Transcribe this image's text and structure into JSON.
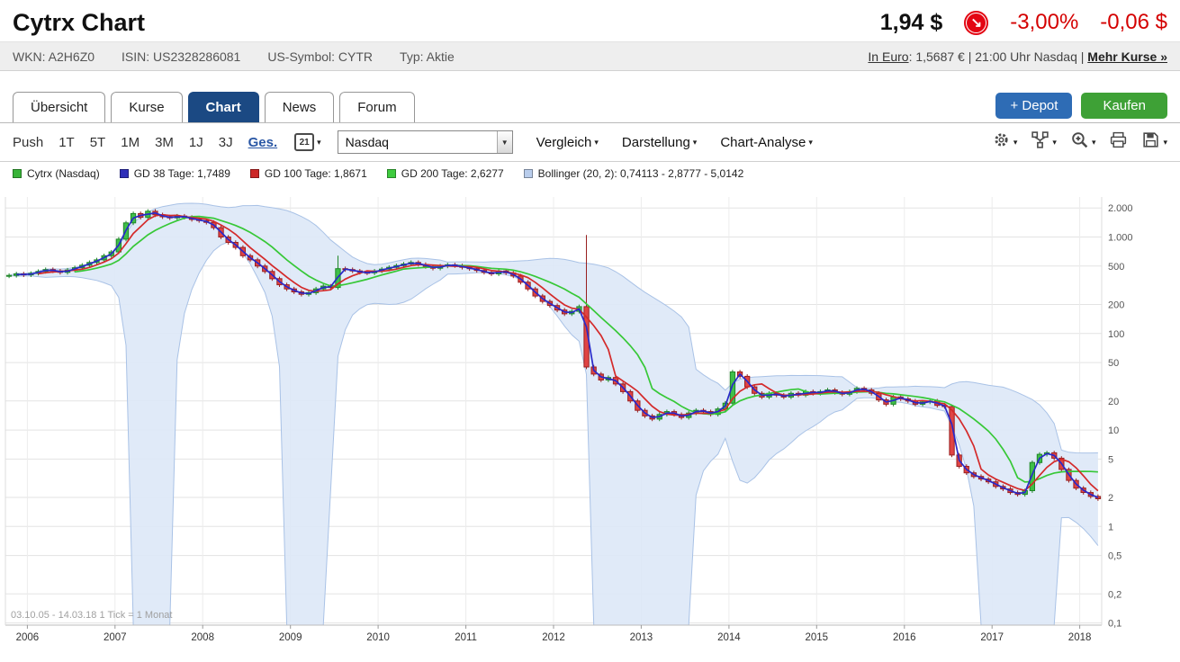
{
  "icons": {
    "caret_down": "▾",
    "select_arrow": "▼",
    "arrow_badge": "↘"
  },
  "header": {
    "title": "Cytrx Chart",
    "price": "1,94 $",
    "change_percent": "-3,00%",
    "change_abs": "-0,06 $",
    "negative_color": "#d40000"
  },
  "infobar": {
    "items": [
      "WKN: A2H6Z0",
      "ISIN: US2328286081",
      "US-Symbol: CYTR",
      "Typ: Aktie"
    ],
    "euro_link": "In Euro",
    "euro_text": ": 1,5687 € | 21:00 Uhr Nasdaq | ",
    "more_link": "Mehr Kurse »"
  },
  "tabs": [
    {
      "label": "Übersicht",
      "active": false
    },
    {
      "label": "Kurse",
      "active": false
    },
    {
      "label": "Chart",
      "active": true
    },
    {
      "label": "News",
      "active": false
    },
    {
      "label": "Forum",
      "active": false
    }
  ],
  "actions": {
    "depot": "+ Depot",
    "buy": "Kaufen"
  },
  "toolbar": {
    "ranges": [
      {
        "label": "Push",
        "active": false
      },
      {
        "label": "1T",
        "active": false
      },
      {
        "label": "5T",
        "active": false
      },
      {
        "label": "1M",
        "active": false
      },
      {
        "label": "3M",
        "active": false
      },
      {
        "label": "1J",
        "active": false
      },
      {
        "label": "3J",
        "active": false
      },
      {
        "label": "Ges.",
        "active": true
      }
    ],
    "calendar_value": "21",
    "exchange_value": "Nasdaq",
    "menus": [
      "Vergleich",
      "Darstellung",
      "Chart-Analyse"
    ]
  },
  "legend": [
    {
      "label": "Cytrx (Nasdaq)",
      "color": "#38b438"
    },
    {
      "label": "GD 38 Tage: 1,7489",
      "color": "#2e2eb8"
    },
    {
      "label": "GD 100 Tage: 1,8671",
      "color": "#cc2626"
    },
    {
      "label": "GD 200 Tage: 2,6277",
      "color": "#3ecb3e"
    },
    {
      "label": "Bollinger (20, 2): 0,74113 - 2,8777 - 5,0142",
      "color": "#b9cdec"
    }
  ],
  "chart_footer": {
    "range_text": "03.10.05 - 14.03.18",
    "tick_text": "1 Tick = 1 Monat"
  },
  "chart_data": {
    "type": "candlestick",
    "title": "Cytrx (Nasdaq), monthly candles, logarithmic scale",
    "start": "2005-10",
    "end": "2018-03",
    "interval": "1 Monat",
    "last_price": 1.94,
    "first_open": 395,
    "closes": [
      400,
      415,
      405,
      420,
      440,
      460,
      445,
      430,
      455,
      480,
      510,
      545,
      580,
      640,
      700,
      950,
      1400,
      1750,
      1600,
      1850,
      1700,
      1620,
      1580,
      1650,
      1600,
      1520,
      1480,
      1420,
      1250,
      1000,
      880,
      780,
      640,
      580,
      500,
      440,
      370,
      320,
      290,
      270,
      255,
      265,
      290,
      310,
      300,
      470,
      460,
      445,
      430,
      425,
      445,
      465,
      485,
      505,
      525,
      545,
      520,
      495,
      475,
      500,
      515,
      505,
      485,
      470,
      450,
      430,
      415,
      445,
      425,
      395,
      340,
      290,
      245,
      215,
      195,
      175,
      160,
      170,
      190,
      45,
      38,
      33,
      35,
      30,
      25,
      20,
      16,
      14,
      13,
      14.5,
      15.5,
      14.5,
      13.5,
      15,
      16,
      15.5,
      14.5,
      16.5,
      19,
      40,
      36,
      28,
      24,
      22,
      24,
      23,
      22,
      24,
      23,
      25,
      24,
      25,
      26,
      24.5,
      23.5,
      25,
      27,
      26,
      24,
      20.5,
      18.5,
      22,
      21,
      20,
      18.5,
      19.5,
      20,
      18,
      17.5,
      5.5,
      4.2,
      3.6,
      3.3,
      3.1,
      2.9,
      2.6,
      2.45,
      2.25,
      2.15,
      2.35,
      4.6,
      5.6,
      5.8,
      5.1,
      3.9,
      3.0,
      2.5,
      2.25,
      2.05,
      1.94
    ],
    "wick_overrides": {
      "45": 640,
      "79": 1050
    },
    "y_axis": {
      "scale": "log",
      "min": 0.095,
      "max": 2600,
      "ticks": [
        {
          "v": 2000,
          "label": "2.000"
        },
        {
          "v": 1000,
          "label": "1.000"
        },
        {
          "v": 500,
          "label": "500"
        },
        {
          "v": 200,
          "label": "200"
        },
        {
          "v": 100,
          "label": "100"
        },
        {
          "v": 50,
          "label": "50"
        },
        {
          "v": 20,
          "label": "20"
        },
        {
          "v": 10,
          "label": "10"
        },
        {
          "v": 5,
          "label": "5"
        },
        {
          "v": 2,
          "label": "2"
        },
        {
          "v": 1,
          "label": "1"
        },
        {
          "v": 0.5,
          "label": "0,5"
        },
        {
          "v": 0.2,
          "label": "0,2"
        },
        {
          "v": 0.1,
          "label": "0,1"
        }
      ]
    },
    "x_axis": {
      "years": [
        {
          "label": "2006",
          "month_index": 3
        },
        {
          "label": "2007",
          "month_index": 15
        },
        {
          "label": "2008",
          "month_index": 27
        },
        {
          "label": "2009",
          "month_index": 39
        },
        {
          "label": "2010",
          "month_index": 51
        },
        {
          "label": "2011",
          "month_index": 63
        },
        {
          "label": "2012",
          "month_index": 75
        },
        {
          "label": "2013",
          "month_index": 87
        },
        {
          "label": "2014",
          "month_index": 99
        },
        {
          "label": "2015",
          "month_index": 111
        },
        {
          "label": "2016",
          "month_index": 123
        },
        {
          "label": "2017",
          "month_index": 135
        },
        {
          "label": "2018",
          "month_index": 147
        }
      ]
    },
    "overlays": {
      "gd38": {
        "sim_window_months": 2,
        "color": "#2929c8",
        "current": "1,7489"
      },
      "gd100": {
        "sim_window_months": 5,
        "color": "#d42a2a",
        "current": "1,8671"
      },
      "gd200": {
        "sim_window_months": 10,
        "color": "#37c837",
        "current": "2,6277"
      },
      "bollinger": {
        "sim_window_months": 16,
        "stddev": 2,
        "fill": "#dde8f7",
        "stroke": "#a9c2e6",
        "current": "0,74113 - 2,8777 - 5,0142"
      }
    },
    "colors": {
      "up_fill": "#3fbf49",
      "up_stroke": "#1f8727",
      "down_fill": "#e04444",
      "down_stroke": "#992020",
      "grid": "#e3e3e3",
      "year_grid": "#ececec",
      "axis_text": "#555555",
      "footer_text": "#a0a0a0"
    }
  }
}
